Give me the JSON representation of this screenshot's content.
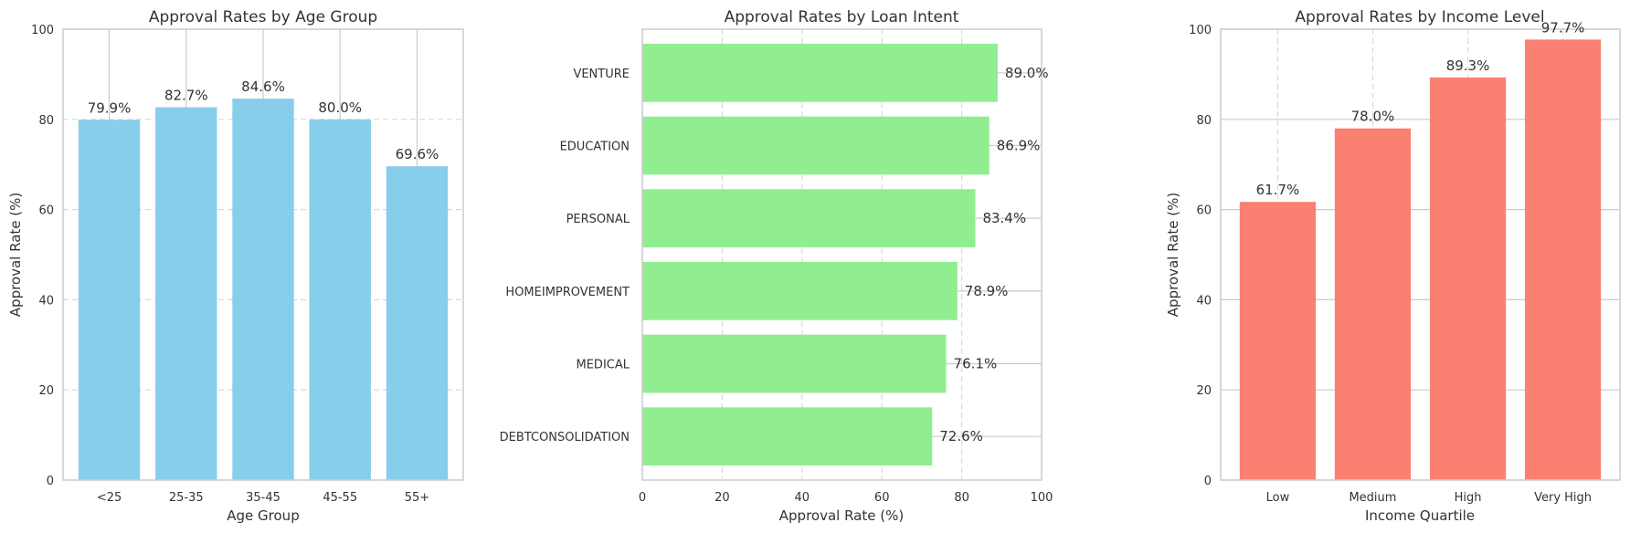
{
  "chart_data": [
    {
      "type": "bar",
      "title": "Approval Rates by Age Group",
      "xlabel": "Age Group",
      "ylabel": "Approval Rate (%)",
      "categories": [
        "<25",
        "25-35",
        "35-45",
        "45-55",
        "55+"
      ],
      "values": [
        79.9,
        82.7,
        84.6,
        80.0,
        69.6
      ],
      "labels": [
        "79.9%",
        "82.7%",
        "84.6%",
        "80.0%",
        "69.6%"
      ],
      "ylim": [
        0,
        100
      ],
      "yticks": [
        "0",
        "20",
        "40",
        "60",
        "80",
        "100"
      ],
      "color": "#87CEEB"
    },
    {
      "type": "bar",
      "orientation": "horizontal",
      "title": "Approval Rates by Loan Intent",
      "xlabel": "Approval Rate (%)",
      "ylabel": "",
      "categories": [
        "VENTURE",
        "EDUCATION",
        "PERSONAL",
        "HOMEIMPROVEMENT",
        "MEDICAL",
        "DEBTCONSOLIDATION"
      ],
      "values": [
        89.0,
        86.9,
        83.4,
        78.9,
        76.1,
        72.6
      ],
      "labels": [
        "89.0%",
        "86.9%",
        "83.4%",
        "78.9%",
        "76.1%",
        "72.6%"
      ],
      "xlim": [
        0,
        100
      ],
      "xticks": [
        "0",
        "20",
        "40",
        "60",
        "80",
        "100"
      ],
      "color": "#90EE90"
    },
    {
      "type": "bar",
      "title": "Approval Rates by Income Level",
      "xlabel": "Income Quartile",
      "ylabel": "Approval Rate (%)",
      "categories": [
        "Low",
        "Medium",
        "High",
        "Very High"
      ],
      "values": [
        61.7,
        78.0,
        89.3,
        97.7
      ],
      "labels": [
        "61.7%",
        "78.0%",
        "89.3%",
        "97.7%"
      ],
      "ylim": [
        0,
        100
      ],
      "yticks": [
        "0",
        "20",
        "40",
        "60",
        "80",
        "100"
      ],
      "color": "#FA8072"
    }
  ]
}
